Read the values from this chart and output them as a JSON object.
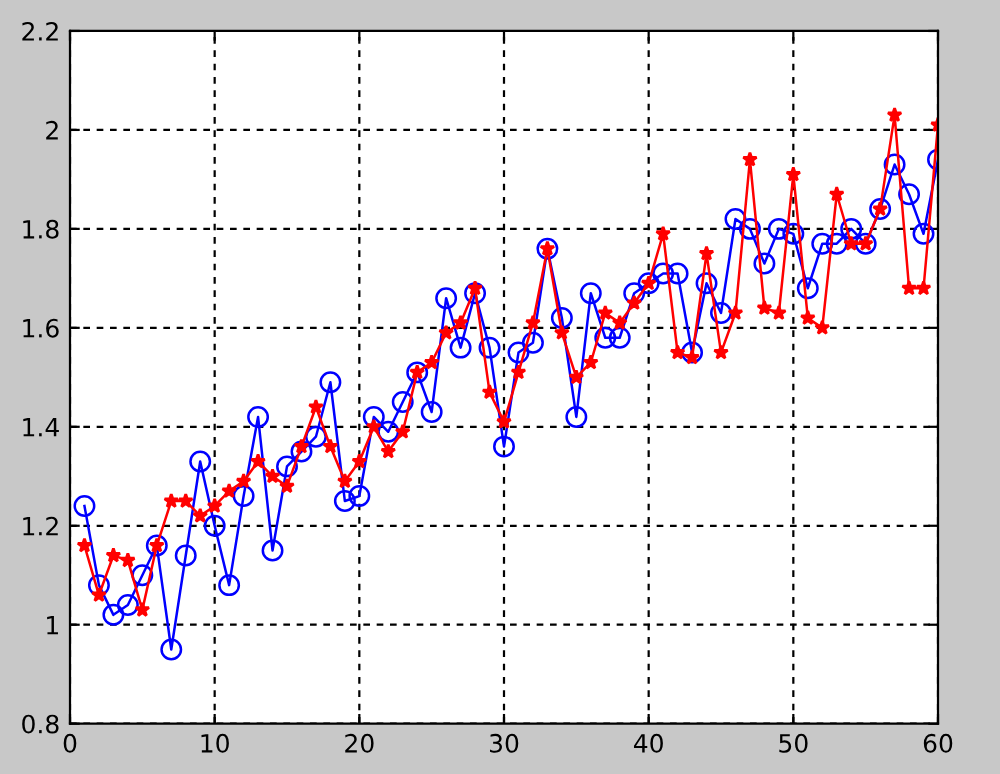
{
  "chart_data": {
    "type": "line",
    "x": [
      1,
      2,
      3,
      4,
      5,
      6,
      7,
      8,
      9,
      10,
      11,
      12,
      13,
      14,
      15,
      16,
      17,
      18,
      19,
      20,
      21,
      22,
      23,
      24,
      25,
      26,
      27,
      28,
      29,
      30,
      31,
      32,
      33,
      34,
      35,
      36,
      37,
      38,
      39,
      40,
      41,
      42,
      43,
      44,
      45,
      46,
      47,
      48,
      49,
      50,
      51,
      52,
      53,
      54,
      55,
      56,
      57,
      58,
      59,
      60
    ],
    "series": [
      {
        "color": "#0000ff",
        "marker": "circle",
        "values": [
          1.24,
          1.08,
          1.02,
          1.04,
          1.1,
          1.16,
          0.95,
          1.14,
          1.33,
          1.2,
          1.08,
          1.26,
          1.42,
          1.15,
          1.32,
          1.35,
          1.38,
          1.49,
          1.25,
          1.26,
          1.42,
          1.39,
          1.45,
          1.51,
          1.43,
          1.66,
          1.56,
          1.67,
          1.56,
          1.36,
          1.55,
          1.57,
          1.76,
          1.62,
          1.42,
          1.67,
          1.58,
          1.58,
          1.67,
          1.69,
          1.71,
          1.71,
          1.55,
          1.69,
          1.63,
          1.82,
          1.8,
          1.73,
          1.8,
          1.79,
          1.68,
          1.77,
          1.77,
          1.8,
          1.77,
          1.84,
          1.93,
          1.87,
          1.79,
          1.94
        ]
      },
      {
        "color": "#ff0000",
        "marker": "star",
        "values": [
          1.16,
          1.06,
          1.14,
          1.13,
          1.03,
          1.16,
          1.25,
          1.25,
          1.22,
          1.24,
          1.27,
          1.29,
          1.33,
          1.3,
          1.28,
          1.36,
          1.44,
          1.36,
          1.29,
          1.33,
          1.4,
          1.35,
          1.39,
          1.51,
          1.53,
          1.59,
          1.61,
          1.68,
          1.47,
          1.41,
          1.51,
          1.61,
          1.76,
          1.59,
          1.5,
          1.53,
          1.63,
          1.61,
          1.65,
          1.69,
          1.79,
          1.55,
          1.54,
          1.75,
          1.55,
          1.63,
          1.94,
          1.64,
          1.63,
          1.91,
          1.62,
          1.6,
          1.87,
          1.77,
          1.77,
          1.84,
          2.03,
          1.68,
          1.68,
          2.01
        ]
      }
    ],
    "xlim": [
      0,
      60
    ],
    "xticks": [
      0,
      10,
      20,
      30,
      40,
      50,
      60
    ],
    "ylim": [
      0.8,
      2.2
    ],
    "yticks": [
      {
        "value": 0.8,
        "label": "0.8"
      },
      {
        "value": 1,
        "label": "1"
      },
      {
        "value": 1.2,
        "label": "1.2"
      },
      {
        "value": 1.4,
        "label": "1.4"
      },
      {
        "value": 1.6,
        "label": "1.6"
      },
      {
        "value": 1.8,
        "label": "1.8"
      },
      {
        "value": 2,
        "label": "2"
      },
      {
        "value": 2.2,
        "label": "2.2"
      }
    ],
    "grid": true,
    "line_style": "solid"
  }
}
